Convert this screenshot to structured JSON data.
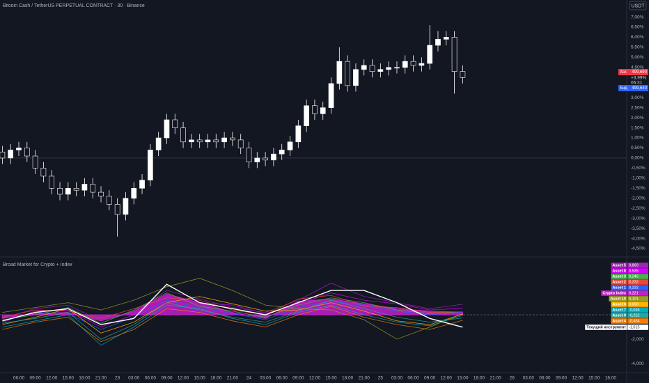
{
  "chart_data": [
    {
      "type": "candlestick",
      "title": "Bitcoin Cash / TetherUS PERPETUAL CONTRACT · 30 · Binance",
      "currency": "USDT",
      "x": [
        -3,
        -1.5,
        0,
        1.5,
        3,
        4.5,
        6,
        7.5,
        9,
        10.5,
        12,
        13.5,
        15,
        16.5,
        18,
        19.5,
        21,
        22.5,
        24,
        25.5,
        27,
        28.5,
        30,
        31.5,
        33,
        34.5,
        36,
        37.5,
        39,
        40.5,
        42,
        43.5,
        45,
        46.5,
        48,
        49.5,
        51,
        52.5,
        54,
        55.5,
        57,
        58.5,
        60,
        61.5,
        63,
        64.5,
        66,
        67.5,
        69,
        70.5,
        72,
        73.5,
        75,
        76.5,
        78,
        79.5,
        81
      ],
      "open": [
        0.3,
        0.0,
        0.4,
        0.5,
        0.1,
        -0.5,
        -0.9,
        -1.5,
        -1.8,
        -1.5,
        -1.6,
        -1.3,
        -1.7,
        -1.9,
        -2.3,
        -2.8,
        -2.0,
        -1.5,
        -1.1,
        0.4,
        1.0,
        1.9,
        1.5,
        0.8,
        0.9,
        0.8,
        0.9,
        0.8,
        1.0,
        0.9,
        0.5,
        -0.2,
        0.0,
        -0.1,
        0.2,
        0.4,
        0.8,
        1.6,
        2.6,
        2.2,
        2.5,
        3.7,
        4.8,
        3.6,
        4.4,
        4.6,
        4.3,
        4.4,
        4.5,
        4.5,
        4.8,
        4.6,
        4.7,
        5.6,
        5.9,
        6.0,
        4.3
      ],
      "high": [
        0.6,
        0.7,
        0.8,
        0.8,
        0.4,
        -0.2,
        -0.6,
        -1.2,
        -1.2,
        -1.2,
        -1.0,
        -1.0,
        -1.4,
        -1.6,
        -2.0,
        -1.7,
        -1.2,
        -0.8,
        0.7,
        1.3,
        2.2,
        2.2,
        1.8,
        1.2,
        1.2,
        1.2,
        1.2,
        1.3,
        1.3,
        1.2,
        0.8,
        0.3,
        0.3,
        0.5,
        0.7,
        1.1,
        1.9,
        2.9,
        2.9,
        2.8,
        4.0,
        5.5,
        5.1,
        4.7,
        4.9,
        4.9,
        4.7,
        4.8,
        4.8,
        5.1,
        5.1,
        5.0,
        6.6,
        6.3,
        6.3,
        6.3,
        4.6
      ],
      "low": [
        -0.3,
        -0.3,
        0.1,
        -0.2,
        -0.8,
        -1.2,
        -1.8,
        -2.1,
        -2.1,
        -1.9,
        -1.9,
        -2.0,
        -2.2,
        -2.6,
        -3.9,
        -3.1,
        -2.3,
        -1.8,
        -1.4,
        0.1,
        0.7,
        1.2,
        0.5,
        0.5,
        0.5,
        0.5,
        0.5,
        0.5,
        0.6,
        0.2,
        -0.5,
        -0.5,
        -0.4,
        -0.4,
        -0.1,
        0.1,
        0.5,
        1.3,
        1.9,
        1.9,
        2.2,
        3.4,
        3.3,
        3.3,
        4.1,
        4.0,
        4.0,
        4.1,
        4.2,
        4.2,
        4.3,
        4.3,
        4.4,
        5.3,
        5.6,
        3.2,
        3.7
      ],
      "close": [
        0.0,
        0.4,
        0.5,
        0.1,
        -0.5,
        -0.9,
        -1.5,
        -1.8,
        -1.5,
        -1.6,
        -1.3,
        -1.7,
        -1.9,
        -2.3,
        -2.8,
        -2.0,
        -1.5,
        -1.1,
        0.4,
        1.0,
        1.9,
        1.5,
        0.8,
        0.9,
        0.8,
        0.9,
        0.8,
        1.0,
        0.9,
        0.5,
        -0.2,
        0.0,
        -0.1,
        0.2,
        0.4,
        0.8,
        1.6,
        2.6,
        2.2,
        2.5,
        3.7,
        4.8,
        3.6,
        4.4,
        4.6,
        4.3,
        4.4,
        4.5,
        4.5,
        4.8,
        4.6,
        4.7,
        5.6,
        5.9,
        6.0,
        4.3,
        4.0
      ],
      "up_color": "#ffffff",
      "down_color": "#131722",
      "baseline": 0,
      "xlim": [
        -3.43,
        110.94
      ],
      "ylim": [
        -4.88,
        7.85
      ],
      "yticks": [
        {
          "value": 7,
          "label": "7,00%"
        },
        {
          "value": 6.5,
          "label": "6,50%"
        },
        {
          "value": 6,
          "label": "6,00%"
        },
        {
          "value": 5.5,
          "label": "5,50%"
        },
        {
          "value": 5,
          "label": "5,00%"
        },
        {
          "value": 4.5,
          "label": "4,50%"
        },
        {
          "value": 3.5,
          "label": "3,50%"
        },
        {
          "value": 3,
          "label": "3,00%"
        },
        {
          "value": 2.5,
          "label": "2,50%"
        },
        {
          "value": 2,
          "label": "2,00%"
        },
        {
          "value": 1.5,
          "label": "1,50%"
        },
        {
          "value": 1,
          "label": "1,00%"
        },
        {
          "value": 0.5,
          "label": "0,50%"
        },
        {
          "value": 0,
          "label": "0,00%"
        },
        {
          "value": -0.5,
          "label": "-0,50%"
        },
        {
          "value": -1,
          "label": "-1,00%"
        },
        {
          "value": -1.5,
          "label": "-1,50%"
        },
        {
          "value": -2,
          "label": "-2,00%"
        },
        {
          "value": -2.5,
          "label": "-2,50%"
        },
        {
          "value": -3,
          "label": "-3,00%"
        },
        {
          "value": -3.5,
          "label": "-3,50%"
        },
        {
          "value": -4,
          "label": "-4,00%"
        },
        {
          "value": -4.5,
          "label": "-4,50%"
        }
      ],
      "ask_tag": "Аск",
      "ask": "499,690",
      "change": "+3,99%",
      "countdown": "06:31",
      "bid_tag": "Бид",
      "bid": "499,640"
    },
    {
      "type": "line",
      "title": "Broad Market for Crypto + Index",
      "x": [
        -3,
        3,
        9,
        15,
        21,
        27,
        33,
        39,
        45,
        51,
        57,
        63,
        69,
        75,
        81
      ],
      "xlim": [
        -3.43,
        110.94
      ],
      "ylim": [
        -4.74,
        4.69
      ],
      "yticks": [
        {
          "value": -2,
          "label": "-2,000"
        },
        {
          "value": -4,
          "label": "-4,000"
        }
      ],
      "baseline": 0,
      "xticks": [
        {
          "value": 0,
          "label": "06:00"
        },
        {
          "value": 3,
          "label": "09:00"
        },
        {
          "value": 6,
          "label": "12:00"
        },
        {
          "value": 9,
          "label": "15:00"
        },
        {
          "value": 12,
          "label": "18:00"
        },
        {
          "value": 15,
          "label": "21:00"
        },
        {
          "value": 18,
          "label": "23"
        },
        {
          "value": 21,
          "label": "03:00"
        },
        {
          "value": 24,
          "label": "06:00"
        },
        {
          "value": 27,
          "label": "09:00"
        },
        {
          "value": 30,
          "label": "12:00"
        },
        {
          "value": 33,
          "label": "15:00"
        },
        {
          "value": 36,
          "label": "18:00"
        },
        {
          "value": 39,
          "label": "21:00"
        },
        {
          "value": 42,
          "label": "24"
        },
        {
          "value": 45,
          "label": "03:00"
        },
        {
          "value": 48,
          "label": "06:00"
        },
        {
          "value": 51,
          "label": "09:00"
        },
        {
          "value": 54,
          "label": "12:00"
        },
        {
          "value": 57,
          "label": "15:00"
        },
        {
          "value": 60,
          "label": "18:00"
        },
        {
          "value": 63,
          "label": "21:00"
        },
        {
          "value": 66,
          "label": "25"
        },
        {
          "value": 69,
          "label": "03:00"
        },
        {
          "value": 72,
          "label": "06:00"
        },
        {
          "value": 75,
          "label": "09:00"
        },
        {
          "value": 78,
          "label": "12:00"
        },
        {
          "value": 81,
          "label": "15:00"
        },
        {
          "value": 84,
          "label": "18:00"
        },
        {
          "value": 87,
          "label": "21:00"
        },
        {
          "value": 90,
          "label": "26"
        },
        {
          "value": 93,
          "label": "03:00"
        },
        {
          "value": 96,
          "label": "06:00"
        },
        {
          "value": 99,
          "label": "09:00"
        },
        {
          "value": 102,
          "label": "12:00"
        },
        {
          "value": 105,
          "label": "15:00"
        },
        {
          "value": 108,
          "label": "18:00"
        }
      ],
      "series": [
        {
          "name": "Asset 5",
          "color": "#9c27b0",
          "values": [
            -0.3,
            0.5,
            0.8,
            -0.5,
            0.2,
            2.0,
            1.3,
            0.6,
            0.2,
            1.2,
            2.6,
            1.5,
            1.0,
            0.5,
            0.869
          ],
          "value_labels": [
            null,
            null,
            null,
            null,
            null,
            null,
            null,
            null,
            null,
            null,
            null,
            null,
            null,
            null,
            "0,869"
          ]
        },
        {
          "name": "Asset 8",
          "color": "#d500f9",
          "values": [
            -0.6,
            0.3,
            0.4,
            -1.0,
            0.0,
            1.5,
            1.0,
            0.8,
            0.1,
            0.9,
            1.8,
            1.2,
            0.9,
            0.4,
            0.535
          ],
          "value_labels": [
            null,
            null,
            null,
            null,
            null,
            null,
            null,
            null,
            null,
            null,
            null,
            null,
            null,
            null,
            "0,535"
          ]
        },
        {
          "name": "Asset 3",
          "color": "#4caf50",
          "values": [
            -0.4,
            0.0,
            0.6,
            -0.7,
            0.4,
            1.8,
            0.7,
            0.3,
            -0.2,
            0.8,
            1.4,
            1.0,
            0.4,
            0.1,
            0.246
          ],
          "value_labels": [
            null,
            null,
            null,
            null,
            null,
            null,
            null,
            null,
            null,
            null,
            null,
            null,
            null,
            null,
            "0,246"
          ]
        },
        {
          "name": "Asset 2",
          "color": "#f44336",
          "values": [
            -0.2,
            0.4,
            0.3,
            -0.3,
            0.5,
            1.4,
            1.2,
            0.4,
            0.0,
            1.3,
            1.6,
            0.7,
            0.6,
            0.2,
            0.232
          ],
          "value_labels": [
            null,
            null,
            null,
            null,
            null,
            null,
            null,
            null,
            null,
            null,
            null,
            null,
            null,
            null,
            "0,232"
          ]
        },
        {
          "name": "Asset 1",
          "color": "#2962ff",
          "values": [
            -0.5,
            0.2,
            0.1,
            -1.2,
            -0.2,
            1.2,
            0.6,
            0.1,
            -0.4,
            0.6,
            1.1,
            0.8,
            0.3,
            0.0,
            0.232
          ],
          "value_labels": [
            null,
            null,
            null,
            null,
            null,
            null,
            null,
            null,
            null,
            null,
            null,
            null,
            null,
            null,
            "0,232"
          ]
        },
        {
          "name": "Crypto Index",
          "color": "#c21fc9",
          "style": "area",
          "values": [
            -0.3,
            0.1,
            0.2,
            -0.5,
            0.3,
            1.7,
            1.0,
            0.2,
            -0.3,
            1.1,
            1.3,
            0.9,
            0.5,
            0.3,
            0.221
          ],
          "value_labels": [
            null,
            null,
            null,
            null,
            null,
            null,
            null,
            null,
            null,
            null,
            null,
            null,
            null,
            null,
            "0,221"
          ]
        },
        {
          "name": "Asset 10",
          "color": "#9e9d24",
          "values": [
            0.2,
            0.6,
            1.0,
            0.4,
            1.2,
            2.3,
            3.0,
            2.0,
            0.8,
            0.5,
            0.4,
            -0.4,
            -2.0,
            -1.0,
            0.101
          ],
          "value_labels": [
            null,
            null,
            null,
            null,
            null,
            null,
            null,
            null,
            null,
            null,
            null,
            null,
            null,
            null,
            "0,101"
          ]
        },
        {
          "name": "Asset 6",
          "color": "#ffb300",
          "values": [
            -0.8,
            -0.2,
            0.5,
            -1.5,
            -0.6,
            1.0,
            1.5,
            0.9,
            0.3,
            0.4,
            1.0,
            0.3,
            -0.5,
            -0.8,
            0.058
          ],
          "value_labels": [
            null,
            null,
            null,
            null,
            null,
            null,
            null,
            null,
            null,
            null,
            null,
            null,
            null,
            null,
            "0,058"
          ]
        },
        {
          "name": "Asset 7",
          "color": "#00acc1",
          "values": [
            -1.0,
            -0.5,
            0.0,
            -2.5,
            -1.0,
            0.8,
            0.5,
            -0.3,
            -0.8,
            0.2,
            0.8,
            0.0,
            -0.6,
            -0.9,
            -0.046
          ],
          "value_labels": [
            null,
            null,
            null,
            null,
            null,
            null,
            null,
            null,
            null,
            null,
            null,
            null,
            null,
            null,
            "-0,046"
          ]
        },
        {
          "name": "Asset 9",
          "color": "#26a69a",
          "values": [
            -0.7,
            -0.3,
            0.2,
            -2.0,
            -0.8,
            1.0,
            0.4,
            -0.2,
            -0.6,
            0.3,
            1.2,
            0.5,
            -0.2,
            -0.6,
            -0.252
          ],
          "value_labels": [
            null,
            null,
            null,
            null,
            null,
            null,
            null,
            null,
            null,
            null,
            null,
            null,
            null,
            null,
            "-0,252"
          ]
        },
        {
          "name": "Asset 4",
          "color": "#f57c00",
          "values": [
            -1.2,
            -0.6,
            -0.2,
            -2.2,
            -1.2,
            0.5,
            0.2,
            -0.5,
            -1.0,
            0.0,
            0.7,
            -0.2,
            -0.8,
            -1.2,
            -0.454
          ],
          "value_labels": [
            null,
            null,
            null,
            null,
            null,
            null,
            null,
            null,
            null,
            null,
            null,
            null,
            null,
            null,
            "-0,454"
          ]
        },
        {
          "name": "Текущий инструмент",
          "color": "#ffffff",
          "values": [
            -0.5,
            0.2,
            0.5,
            -0.8,
            -0.3,
            2.5,
            1.0,
            0.5,
            0.0,
            1.0,
            2.0,
            2.0,
            1.0,
            -0.3,
            -1.015
          ],
          "value_labels": [
            null,
            null,
            null,
            null,
            null,
            null,
            null,
            null,
            null,
            null,
            null,
            null,
            null,
            null,
            "-1,015"
          ]
        }
      ]
    }
  ]
}
